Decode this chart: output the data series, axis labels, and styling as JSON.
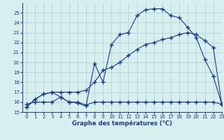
{
  "line_max_x": [
    0,
    1,
    2,
    3,
    4,
    5,
    6,
    7,
    8,
    9,
    10,
    11,
    12,
    13,
    14,
    15,
    16,
    17,
    18,
    19,
    20,
    21,
    22,
    23
  ],
  "line_max_y": [
    15.5,
    16.3,
    16.8,
    17.0,
    16.5,
    16.0,
    15.9,
    15.6,
    19.9,
    18.0,
    21.8,
    22.8,
    23.0,
    24.7,
    25.3,
    25.4,
    25.4,
    24.7,
    24.5,
    23.5,
    22.5,
    20.3,
    18.6,
    15.8
  ],
  "line_min_x": [
    0,
    1,
    2,
    3,
    4,
    5,
    6,
    7,
    8,
    9,
    10,
    11,
    12,
    13,
    14,
    15,
    16,
    17,
    18,
    19,
    20,
    21,
    22,
    23
  ],
  "line_min_y": [
    15.8,
    16.0,
    16.0,
    16.0,
    16.5,
    16.0,
    16.0,
    15.7,
    16.0,
    16.0,
    16.0,
    16.0,
    16.0,
    16.0,
    16.0,
    16.0,
    16.0,
    16.0,
    16.0,
    16.0,
    16.0,
    16.0,
    16.0,
    15.8
  ],
  "line_avg_x": [
    0,
    1,
    2,
    3,
    4,
    5,
    6,
    7,
    8,
    9,
    10,
    11,
    12,
    13,
    14,
    15,
    16,
    17,
    18,
    19,
    20,
    21,
    22,
    23
  ],
  "line_avg_y": [
    15.5,
    16.3,
    16.8,
    17.0,
    17.0,
    17.0,
    17.0,
    17.2,
    18.0,
    19.2,
    19.5,
    20.0,
    20.7,
    21.3,
    21.8,
    22.0,
    22.3,
    22.5,
    22.8,
    23.0,
    22.8,
    22.2,
    21.5,
    15.8
  ],
  "line_color": "#1a3a8a",
  "bg_color": "#d8eff0",
  "grid_color": "#aacfcf",
  "xlabel": "Graphe des températures (°C)",
  "ylim": [
    15,
    26
  ],
  "xlim": [
    -0.5,
    23
  ],
  "yticks": [
    15,
    16,
    17,
    18,
    19,
    20,
    21,
    22,
    23,
    24,
    25
  ],
  "xticks": [
    0,
    1,
    2,
    3,
    4,
    5,
    6,
    7,
    8,
    9,
    10,
    11,
    12,
    13,
    14,
    15,
    16,
    17,
    18,
    19,
    20,
    21,
    22,
    23
  ]
}
